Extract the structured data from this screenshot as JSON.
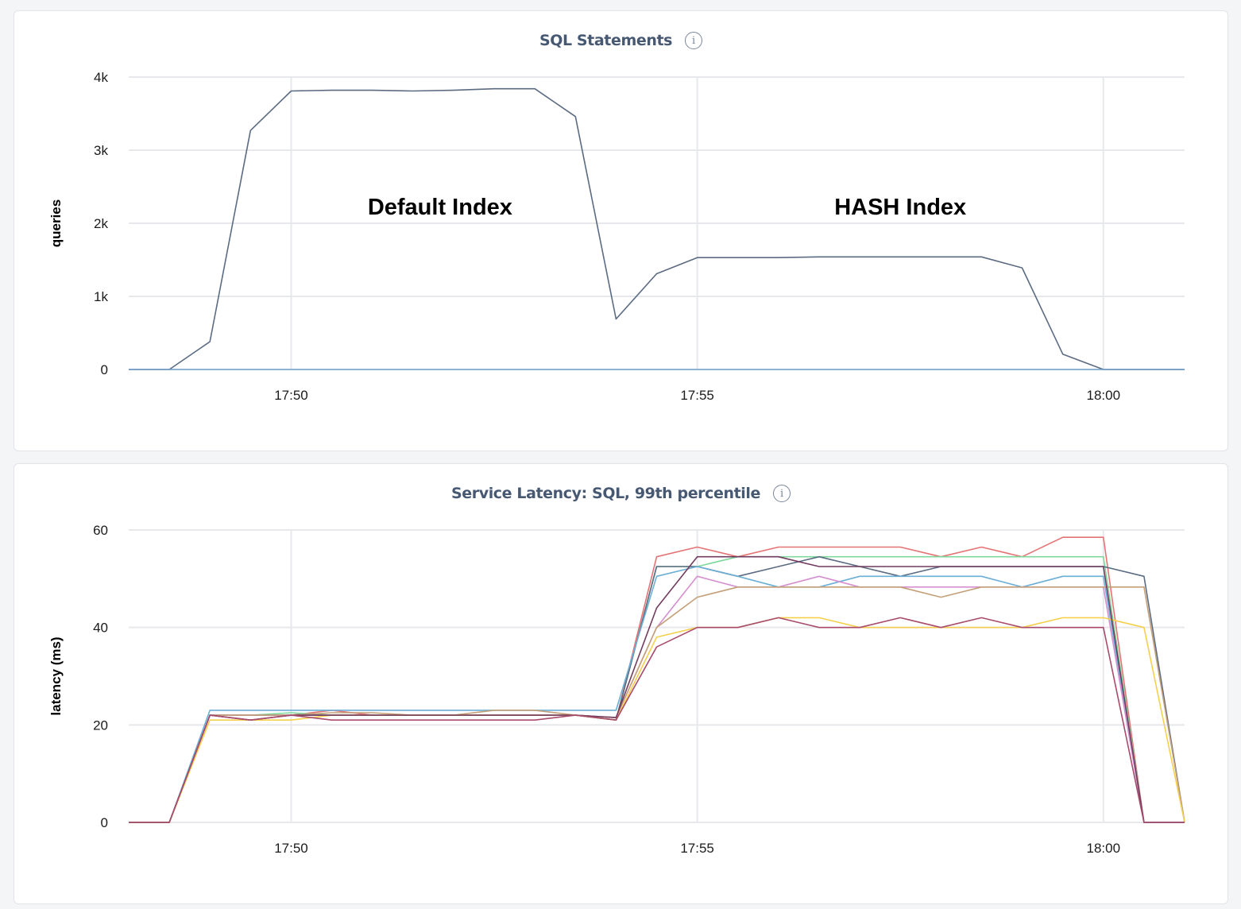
{
  "panels": [
    {
      "title": "SQL Statements",
      "info_icon": "info-icon"
    },
    {
      "title": "Service Latency: SQL, 99th percentile",
      "info_icon": "info-icon"
    }
  ],
  "colors": {
    "gridline": "#e6e8ec",
    "axis": "#8593b0"
  },
  "chart_data": [
    {
      "type": "line",
      "title": "SQL Statements",
      "ylabel": "queries",
      "xlabel": "",
      "x_unit": "minutes",
      "x_tick_values": [
        {
          "value": 17.8333,
          "label": "17:50"
        },
        {
          "value": 17.9167,
          "label": "17:55"
        },
        {
          "value": 18.0,
          "label": "18:00"
        }
      ],
      "xlim_clock": [
        "17:48",
        "18:01"
      ],
      "x": [
        "17:48:00",
        "17:48:30",
        "17:49:00",
        "17:49:30",
        "17:50:00",
        "17:50:30",
        "17:51:00",
        "17:51:30",
        "17:52:00",
        "17:52:30",
        "17:53:00",
        "17:53:30",
        "17:54:00",
        "17:54:30",
        "17:55:00",
        "17:55:30",
        "17:56:00",
        "17:56:30",
        "17:57:00",
        "17:57:30",
        "17:58:00",
        "17:58:30",
        "17:59:00",
        "17:59:30",
        "18:00:00",
        "18:00:30",
        "18:01:00"
      ],
      "ylim": [
        0,
        4000
      ],
      "y_ticks": [
        {
          "value": 0,
          "label": "0"
        },
        {
          "value": 1000,
          "label": "1k"
        },
        {
          "value": 2000,
          "label": "2k"
        },
        {
          "value": 3000,
          "label": "3k"
        },
        {
          "value": 4000,
          "label": "4k"
        }
      ],
      "grid": true,
      "annotations": [
        {
          "text": "Default Index",
          "x": "17:51:50",
          "y": 2230
        },
        {
          "text": "HASH Index",
          "x": "17:57:30",
          "y": 2230
        }
      ],
      "series": [
        {
          "color": "#5b6b82",
          "values": [
            0,
            0,
            380,
            3270,
            3810,
            3820,
            3820,
            3810,
            3820,
            3840,
            3840,
            3460,
            690,
            1310,
            1530,
            1530,
            1530,
            1540,
            1540,
            1540,
            1540,
            1540,
            1390,
            210,
            0,
            0,
            0
          ]
        },
        {
          "color": "#6f9fce",
          "values": [
            0,
            0,
            0,
            0,
            0,
            0,
            0,
            0,
            0,
            0,
            0,
            0,
            0,
            0,
            0,
            0,
            0,
            0,
            0,
            0,
            0,
            0,
            0,
            0,
            0,
            0,
            0
          ]
        }
      ]
    },
    {
      "type": "line",
      "title": "Service Latency: SQL, 99th percentile",
      "ylabel": "latency (ms)",
      "xlabel": "",
      "x_tick_values": [
        {
          "value": 17.8333,
          "label": "17:50"
        },
        {
          "value": 17.9167,
          "label": "17:55"
        },
        {
          "value": 18.0,
          "label": "18:00"
        }
      ],
      "x": [
        "17:48:00",
        "17:48:30",
        "17:49:00",
        "17:49:30",
        "17:50:00",
        "17:50:30",
        "17:51:00",
        "17:51:30",
        "17:52:00",
        "17:52:30",
        "17:53:00",
        "17:53:30",
        "17:54:00",
        "17:54:30",
        "17:55:00",
        "17:55:30",
        "17:56:00",
        "17:56:30",
        "17:57:00",
        "17:57:30",
        "17:58:00",
        "17:58:30",
        "17:59:00",
        "17:59:30",
        "18:00:00",
        "18:00:30",
        "18:01:00"
      ],
      "ylim": [
        0,
        60
      ],
      "y_ticks": [
        {
          "value": 0,
          "label": "0"
        },
        {
          "value": 20,
          "label": "20"
        },
        {
          "value": 40,
          "label": "40"
        },
        {
          "value": 60,
          "label": "60"
        }
      ],
      "grid": true,
      "series": [
        {
          "color": "#e57373",
          "values": [
            0,
            0,
            22,
            22,
            22,
            23,
            22,
            22,
            22,
            22,
            22,
            22,
            21,
            54.5,
            56.5,
            54.5,
            56.5,
            56.5,
            56.5,
            56.5,
            54.5,
            56.5,
            54.5,
            58.5,
            58.5,
            0,
            0
          ]
        },
        {
          "color": "#7fd89b",
          "values": [
            0,
            0,
            22,
            22,
            22.5,
            22,
            22,
            22,
            22,
            22,
            22,
            22,
            21,
            52.5,
            52.5,
            54.5,
            54.5,
            54.5,
            54.5,
            54.5,
            54.5,
            54.5,
            54.5,
            54.5,
            54.5,
            0,
            0
          ]
        },
        {
          "color": "#5b6b82",
          "values": [
            0,
            0,
            22,
            22,
            22,
            22,
            22,
            22,
            22,
            22,
            22,
            22,
            21,
            52.5,
            52.5,
            50.5,
            52.5,
            54.5,
            52.5,
            50.5,
            52.5,
            52.5,
            52.5,
            52.5,
            52.5,
            50.5,
            0
          ]
        },
        {
          "color": "#6baed6",
          "values": [
            0,
            0,
            23,
            23,
            23,
            23,
            23,
            23,
            23,
            23,
            23,
            23,
            23,
            50.5,
            52.5,
            50.5,
            48.3,
            48.3,
            50.5,
            50.5,
            50.5,
            50.5,
            48.3,
            50.5,
            50.5,
            0,
            0
          ]
        },
        {
          "color": "#d58fcf",
          "values": [
            0,
            0,
            22,
            22,
            22,
            22,
            22,
            22,
            22,
            22,
            22,
            22,
            21.5,
            40,
            50.5,
            48.3,
            48.3,
            50.5,
            48.3,
            48.3,
            48.3,
            48.3,
            48.3,
            48.3,
            48.3,
            0,
            0
          ]
        },
        {
          "color": "#c4a079",
          "values": [
            0,
            0,
            22,
            22,
            22,
            22.5,
            22.5,
            22,
            22,
            23,
            23,
            22,
            21.5,
            40,
            46.2,
            48.3,
            48.3,
            48.3,
            48.3,
            48.3,
            46.2,
            48.3,
            48.3,
            48.3,
            48.3,
            48.3,
            0
          ]
        },
        {
          "color": "#f5d04d",
          "values": [
            0,
            0,
            21,
            21,
            21,
            22,
            22,
            22,
            22,
            22,
            22,
            22,
            21,
            38,
            40,
            40,
            42,
            42,
            40,
            40,
            40,
            40,
            40,
            42,
            42,
            40,
            0
          ]
        },
        {
          "color": "#723c5e",
          "values": [
            0,
            0,
            22,
            21,
            22,
            22,
            22,
            22,
            22,
            22,
            22,
            22,
            21.5,
            44,
            54.5,
            54.5,
            54.5,
            52.5,
            52.5,
            52.5,
            52.5,
            52.5,
            52.5,
            52.5,
            52.5,
            0,
            0
          ]
        },
        {
          "color": "#a84b6c",
          "values": [
            0,
            0,
            22,
            21,
            22,
            21,
            21,
            21,
            21,
            21,
            21,
            22,
            21,
            36,
            40,
            40,
            42,
            40,
            40,
            42,
            40,
            42,
            40,
            40,
            40,
            0,
            0
          ]
        }
      ]
    }
  ]
}
